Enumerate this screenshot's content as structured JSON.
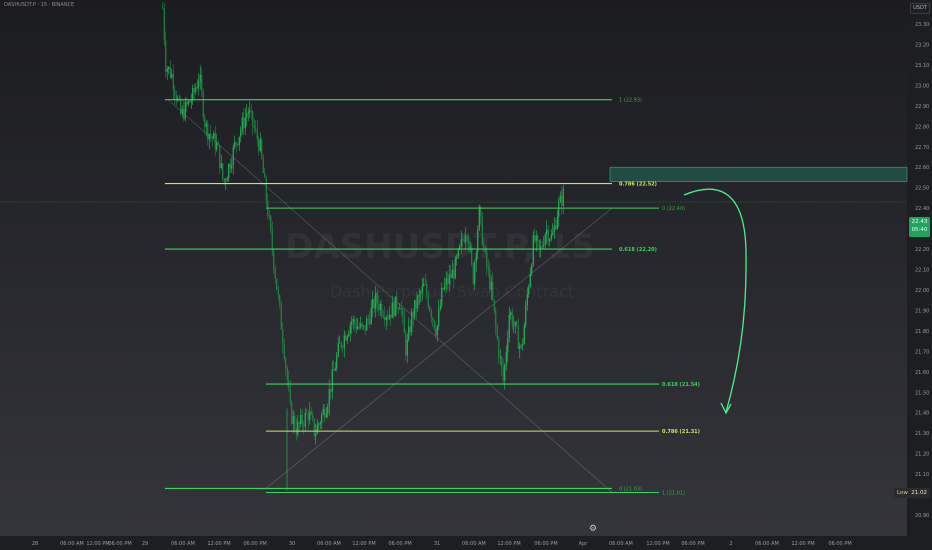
{
  "header": {
    "symbol_title": "DASHUSDT.P · 15 · BINANCE"
  },
  "price_axis": {
    "currency": "USDT",
    "ticks": [
      "23.30",
      "23.20",
      "23.10",
      "23.00",
      "22.90",
      "22.80",
      "22.70",
      "22.60",
      "22.50",
      "22.40",
      "22.30",
      "22.20",
      "22.10",
      "22.00",
      "21.90",
      "21.80",
      "21.70",
      "21.60",
      "21.50",
      "21.40",
      "21.30",
      "21.20",
      "21.10",
      "21.00",
      "20.90"
    ],
    "current_price": "22.43",
    "countdown": "05:40",
    "low_label": "Low",
    "low_value": "21.02"
  },
  "time_axis": {
    "labels": [
      "28",
      "06:00 AM",
      "12:00 PM",
      "06:00 PM",
      "29",
      "06:00 AM",
      "12:00 PM",
      "06:00 PM",
      "30",
      "06:00 AM",
      "12:00 PM",
      "06:00 PM",
      "31",
      "06:00 AM",
      "12:00 PM",
      "06:00 PM",
      "Apr",
      "06:00 AM",
      "12:00 PM",
      "06:00 PM",
      "2",
      "06:00 AM",
      "12:00 PM",
      "06:00 PM"
    ]
  },
  "watermark": {
    "line1": "DASHUSDT.P, 15",
    "line2": "Dash Perpetual Swap Contract"
  },
  "fib_upper": [
    {
      "label": "1 (22.93)"
    },
    {
      "label": "0.786 (22.52)"
    },
    {
      "label": "0 (22.40)"
    },
    {
      "label": "0.618 (22.20)"
    }
  ],
  "fib_lower": [
    {
      "label": "0.618 (21.54)"
    },
    {
      "label": "0.786 (21.31)"
    },
    {
      "label": "0 (21.03)"
    },
    {
      "label": "1 (21.01)"
    }
  ],
  "colors": {
    "background": "#1a1b1f",
    "candle_up": "#27c25a",
    "fib_green": "#3ad45e",
    "fib_yellow": "#c4e86a",
    "arrow": "#4cf08a",
    "zone": "#1f6e5a"
  },
  "chart_data": {
    "type": "candlestick",
    "title": "DASHUSDT.P, 15",
    "xlabel": "",
    "ylabel": "USDT",
    "ylim": [
      20.85,
      23.4
    ],
    "x_range": [
      "28 Mar",
      "2 Apr 18:00"
    ],
    "grid": false,
    "price_path": [
      {
        "t": "28 Mar 21:00",
        "close": 23.38
      },
      {
        "t": "28 Mar 21:30",
        "close": 23.1
      },
      {
        "t": "28 Mar 22:30",
        "close": 23.05
      },
      {
        "t": "29 Mar 00:00",
        "close": 22.85
      },
      {
        "t": "29 Mar 02:00",
        "close": 22.95
      },
      {
        "t": "29 Mar 03:00",
        "close": 23.05
      },
      {
        "t": "29 Mar 04:00",
        "close": 22.8
      },
      {
        "t": "29 Mar 06:00",
        "close": 22.7
      },
      {
        "t": "29 Mar 07:00",
        "close": 22.52
      },
      {
        "t": "29 Mar 09:00",
        "close": 22.72
      },
      {
        "t": "29 Mar 11:00",
        "close": 22.88
      },
      {
        "t": "29 Mar 13:00",
        "close": 22.7
      },
      {
        "t": "29 Mar 14:00",
        "close": 22.45
      },
      {
        "t": "29 Mar 15:00",
        "close": 22.2
      },
      {
        "t": "29 Mar 16:00",
        "close": 21.95
      },
      {
        "t": "29 Mar 17:00",
        "close": 21.7
      },
      {
        "t": "29 Mar 18:00",
        "close": 21.4
      },
      {
        "t": "29 Mar 19:00",
        "close": 21.32
      },
      {
        "t": "29 Mar 21:00",
        "close": 21.4
      },
      {
        "t": "29 Mar 22:00",
        "close": 21.3
      },
      {
        "t": "30 Mar 00:00",
        "close": 21.45
      },
      {
        "t": "30 Mar 02:00",
        "close": 21.72
      },
      {
        "t": "30 Mar 04:00",
        "close": 21.85
      },
      {
        "t": "30 Mar 06:00",
        "close": 21.8
      },
      {
        "t": "30 Mar 08:00",
        "close": 21.95
      },
      {
        "t": "30 Mar 10:00",
        "close": 21.88
      },
      {
        "t": "30 Mar 12:00",
        "close": 21.95
      },
      {
        "t": "30 Mar 13:00",
        "close": 21.7
      },
      {
        "t": "30 Mar 14:00",
        "close": 21.88
      },
      {
        "t": "30 Mar 16:00",
        "close": 22.02
      },
      {
        "t": "30 Mar 18:00",
        "close": 21.8
      },
      {
        "t": "30 Mar 19:00",
        "close": 22.0
      },
      {
        "t": "30 Mar 21:00",
        "close": 22.1
      },
      {
        "t": "30 Mar 23:00",
        "close": 22.32
      },
      {
        "t": "31 Mar 00:00",
        "close": 22.05
      },
      {
        "t": "31 Mar 01:00",
        "close": 22.38
      },
      {
        "t": "31 Mar 02:00",
        "close": 22.15
      },
      {
        "t": "31 Mar 03:00",
        "close": 22.0
      },
      {
        "t": "31 Mar 04:00",
        "close": 21.75
      },
      {
        "t": "31 Mar 05:00",
        "close": 21.55
      },
      {
        "t": "31 Mar 06:00",
        "close": 21.9
      },
      {
        "t": "31 Mar 08:00",
        "close": 21.7
      },
      {
        "t": "31 Mar 09:00",
        "close": 22.0
      },
      {
        "t": "31 Mar 10:00",
        "close": 22.25
      },
      {
        "t": "31 Mar 11:00",
        "close": 22.18
      },
      {
        "t": "31 Mar 12:00",
        "close": 22.3
      },
      {
        "t": "31 Mar 13:00",
        "close": 22.25
      },
      {
        "t": "31 Mar 14:00",
        "close": 22.4
      },
      {
        "t": "31 Mar 15:00",
        "close": 22.48
      }
    ],
    "horizontal_levels": [
      22.93,
      22.52,
      22.4,
      22.2,
      21.54,
      21.31,
      21.03,
      21.01
    ],
    "resistance_zone": [
      22.53,
      22.6
    ],
    "current_price": 22.43,
    "low": 21.02
  }
}
